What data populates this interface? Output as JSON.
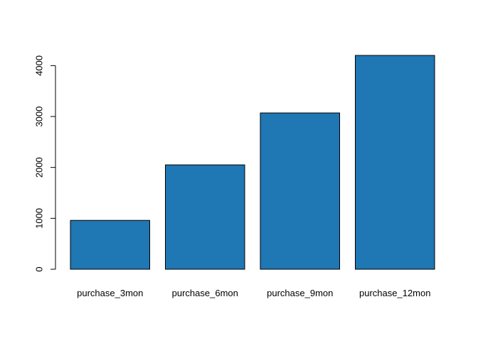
{
  "chart_data": {
    "type": "bar",
    "title": "",
    "xlabel": "",
    "ylabel": "",
    "categories": [
      "purchase_3mon",
      "purchase_6mon",
      "purchase_9mon",
      "purchase_12mon"
    ],
    "values": [
      960,
      2050,
      3070,
      4200
    ],
    "ylim": [
      0,
      4200
    ],
    "yticks": [
      0,
      1000,
      2000,
      3000,
      4000
    ],
    "y_tick_labels": [
      "0",
      "1000",
      "2000",
      "3000",
      "4000"
    ],
    "bar_color": "#1f77b4",
    "grid": false,
    "legend": "none"
  }
}
